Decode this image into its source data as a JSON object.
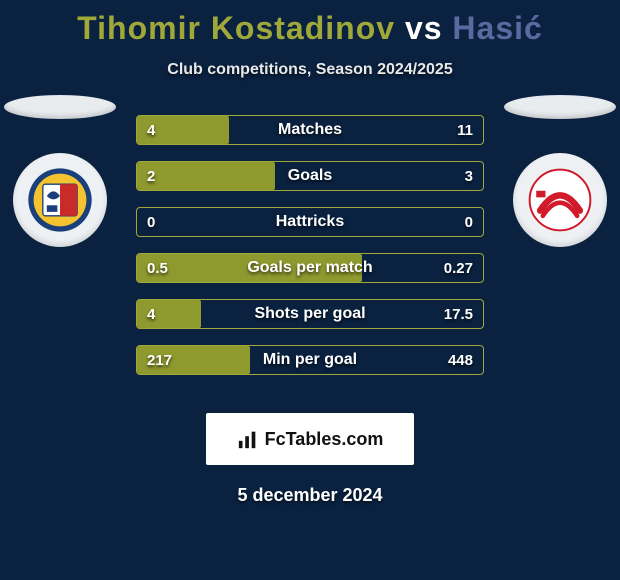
{
  "title": {
    "player1": "Tihomir Kostadinov",
    "vs": "vs",
    "player2": "Hasić"
  },
  "subtitle": "Club competitions, Season 2024/2025",
  "colors": {
    "player1": "#a0a83a",
    "player1_fill": "#8f9a2e",
    "player2": "#5a6aa0",
    "background": "#0a2240",
    "bar_border": "#a0a83a",
    "ellipse": "#e8ecef",
    "badge_bg": "#eef1f4"
  },
  "club_left": {
    "name": "Piast Gliwice",
    "crest_colors": {
      "ring": "#1b3f7a",
      "inner": "#f4c430",
      "eagle": "#ffffff",
      "field": "#c92a2a"
    }
  },
  "club_right": {
    "name": "Cracovia",
    "crest_colors": {
      "bg": "#ffffff",
      "stripe": "#d11a2a"
    }
  },
  "bars": [
    {
      "label": "Matches",
      "left": "4",
      "right": "11",
      "fill_pct": 26.7,
      "total_max": true
    },
    {
      "label": "Goals",
      "left": "2",
      "right": "3",
      "fill_pct": 40
    },
    {
      "label": "Hattricks",
      "left": "0",
      "right": "0",
      "fill_pct": 0
    },
    {
      "label": "Goals per match",
      "left": "0.5",
      "right": "0.27",
      "fill_pct": 64.9
    },
    {
      "label": "Shots per goal",
      "left": "4",
      "right": "17.5",
      "fill_pct": 18.6
    },
    {
      "label": "Min per goal",
      "left": "217",
      "right": "448",
      "fill_pct": 32.6
    }
  ],
  "logo_text": "FcTables.com",
  "date": "5 december 2024"
}
